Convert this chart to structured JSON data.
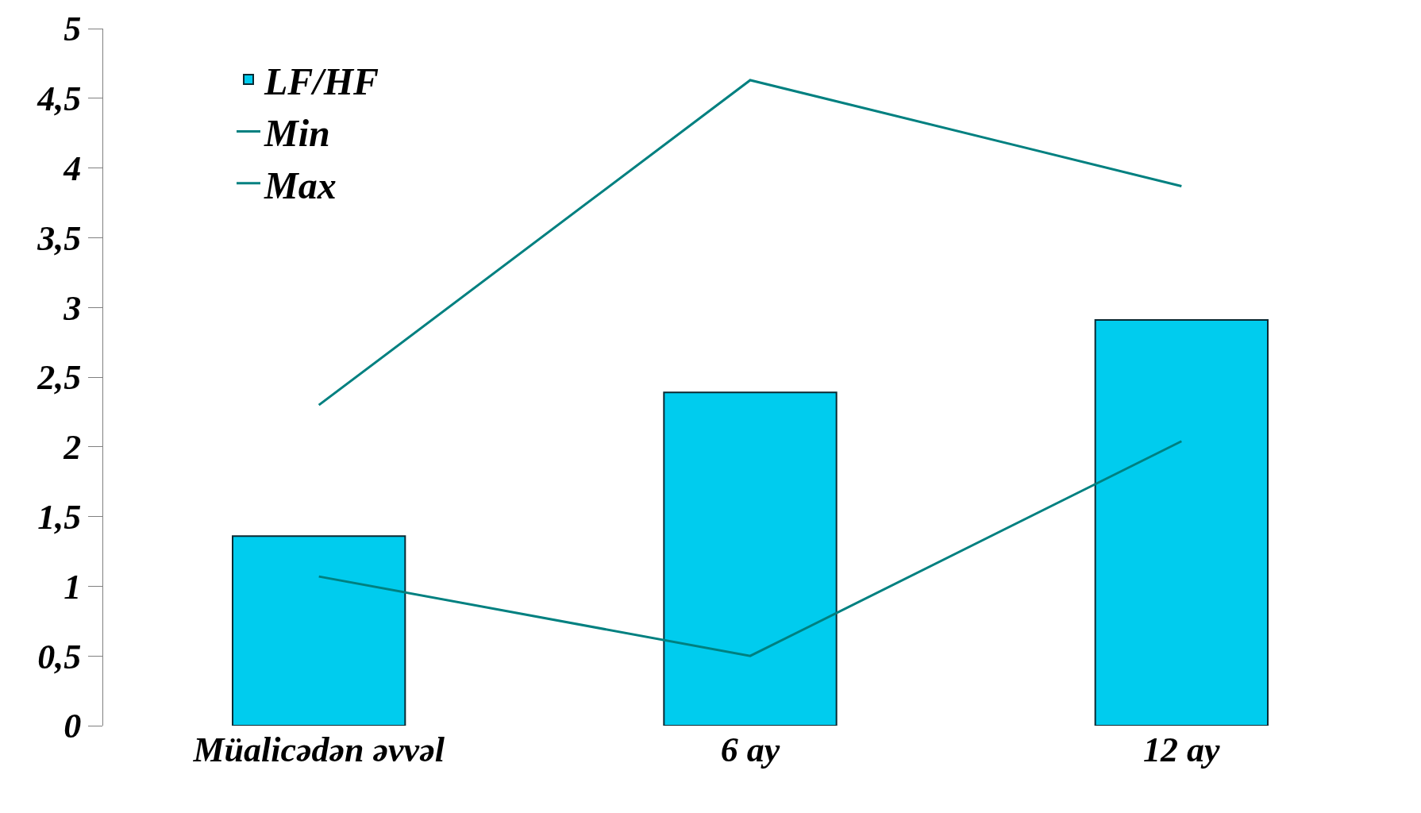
{
  "chart_data": {
    "type": "bar",
    "categories": [
      "Müalicədən əvvəl",
      "6 ay",
      "12 ay"
    ],
    "series": [
      {
        "name": "LF/HF",
        "color": "#00ccee",
        "values": [
          1.36,
          2.39,
          2.91
        ]
      },
      {
        "name": "Min",
        "type": "line",
        "color": "#008080",
        "values": [
          1.07,
          0.5,
          2.04
        ]
      },
      {
        "name": "Max",
        "type": "line",
        "color": "#008080",
        "values": [
          2.3,
          4.63,
          3.87
        ]
      }
    ],
    "ylim": [
      0,
      5
    ],
    "yticks": [
      0,
      {
        "value": 0.5,
        "label": "0,5"
      },
      1,
      {
        "value": 1.5,
        "label": "1,5"
      },
      2,
      {
        "value": 2.5,
        "label": "2,5"
      },
      3,
      {
        "value": 3.5,
        "label": "3,5"
      },
      4,
      {
        "value": 4.5,
        "label": "4,5"
      },
      5
    ],
    "grid": false,
    "legend": "top left"
  }
}
